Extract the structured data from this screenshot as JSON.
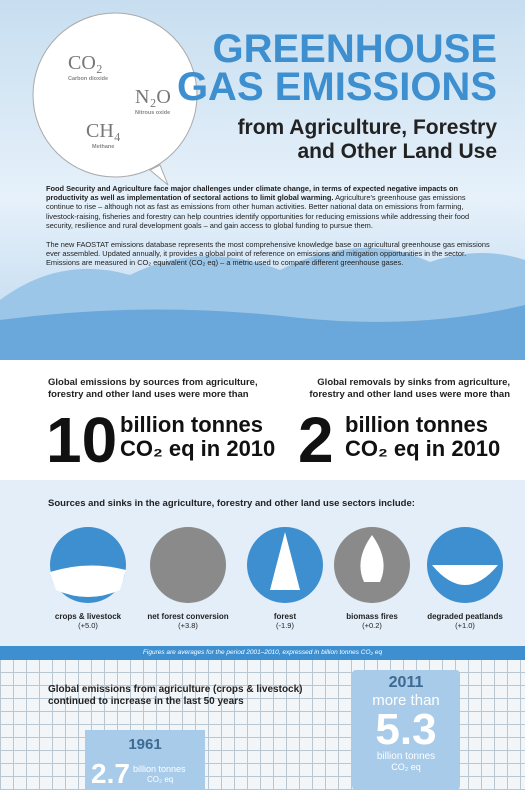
{
  "bubble": {
    "gases": [
      {
        "formula": "CO₂",
        "name": "Carbon dioxide"
      },
      {
        "formula": "N₂O",
        "name": "Nitrous oxide"
      },
      {
        "formula": "CH₄",
        "name": "Methane"
      }
    ]
  },
  "header": {
    "title_line1": "GREENHOUSE",
    "title_line2": "GAS EMISSIONS",
    "subtitle_line1": "from Agriculture, Forestry",
    "subtitle_line2": "and Other Land Use"
  },
  "intro": {
    "p1_bold": "Food Security and Agriculture face major challenges under climate change, in terms of expected negative impacts on productivity as well as implementation of sectoral actions to limit global warming.",
    "p1_rest": " Agriculture's greenhouse gas emissions continue to rise – although not as fast as emissions from other human activities. Better national data on emissions from farming, livestock-raising, fisheries and forestry can help countries identify opportunities for reducing emissions while addressing their food security, resilience and rural development goals – and gain access to global funding to pursue them.",
    "p2": "The new FAOSTAT emissions database represents the most comprehensive knowledge base on agricultural greenhouse gas emissions ever assembled. Updated annually, it provides a global point of reference on emissions and mitigation opportunities in the sector. Emissions are measured in CO₂ equivalent (CO₂ eq) – a metric used to compare different greenhouse gases."
  },
  "stats": [
    {
      "label": "Global emissions by sources from agriculture, forestry and other land uses were more than",
      "number": "10",
      "unit1": "billion tonnes",
      "unit2": "CO₂ eq in 2010"
    },
    {
      "label": "Global removals by sinks from agriculture, forestry and other land uses were more than",
      "number": "2",
      "unit1": "billion tonnes",
      "unit2": "CO₂ eq in 2010"
    }
  ],
  "sources": {
    "heading": "Sources and sinks in the agriculture, forestry and other land use sectors include:",
    "items": [
      {
        "name": "crops & livestock",
        "value": "(+5.0)"
      },
      {
        "name": "net forest conversion",
        "value": "(+3.8)"
      },
      {
        "name": "forest",
        "value": "(-1.9)"
      },
      {
        "name": "biomass fires",
        "value": "(+0.2)"
      },
      {
        "name": "degraded peatlands",
        "value": "(+1.0)"
      }
    ],
    "note": "Figures are averages for the period 2001–2010, expressed in billion tonnes CO₂ eq"
  },
  "trend": {
    "heading": "Global emissions from agriculture (crops & livestock) continued to increase in the last 50 years",
    "y1961": {
      "year": "1961",
      "number": "2.7",
      "unit1": "billion tonnes",
      "unit2": "CO₂ eq"
    },
    "y2011": {
      "year": "2011",
      "prefix": "more than",
      "number": "5.3",
      "unit1": "billion tonnes",
      "unit2": "CO₂ eq"
    }
  }
}
